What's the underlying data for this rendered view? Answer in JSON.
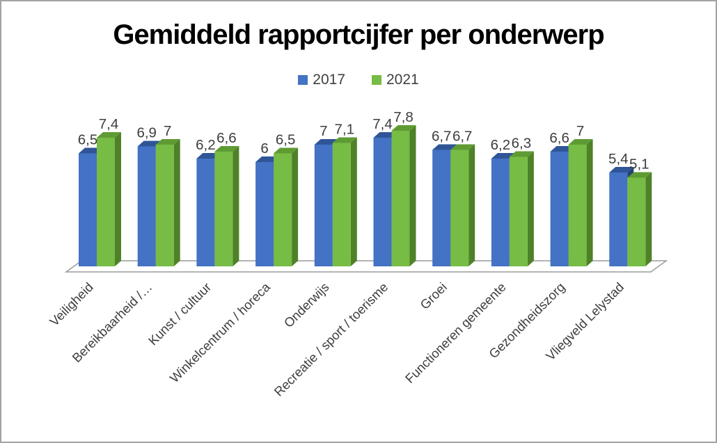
{
  "title": "Gemiddeld rapportcijfer per onderwerp",
  "legend": {
    "items": [
      {
        "label": "2017",
        "color": "#4472C4"
      },
      {
        "label": "2021",
        "color": "#77BC45"
      }
    ]
  },
  "chart_data": {
    "type": "bar",
    "style": "3d-clustered",
    "title": "Gemiddeld rapportcijfer per onderwerp",
    "legend_position": "top",
    "gridlines": false,
    "value_axis_visible": false,
    "ylim": [
      0,
      8
    ],
    "decimal_separator": ",",
    "categories": [
      "Veiligheid",
      "Bereikbaarheid /…",
      "Kunst / cultuur",
      "Winkelcentrum / horeca",
      "Onderwijs",
      "Recreatie / sport / toerisme",
      "Groei",
      "Functioneren gemeente",
      "Gezondheidszorg",
      "Vliegveld Lelystad"
    ],
    "series": [
      {
        "name": "2017",
        "color": "#4472C4",
        "top_color": "#2F5597",
        "side_color": "#24417A",
        "values": [
          6.5,
          6.9,
          6.2,
          6.0,
          7.0,
          7.4,
          6.7,
          6.2,
          6.6,
          5.4
        ],
        "display_labels": [
          "6,5",
          "6,9",
          "6,2",
          "6",
          "7",
          "7,4",
          "6,7",
          "6,2",
          "6,6",
          "5,4"
        ]
      },
      {
        "name": "2021",
        "color": "#77BC45",
        "top_color": "#5F9B33",
        "side_color": "#4E8128",
        "values": [
          7.4,
          7.0,
          6.6,
          6.5,
          7.1,
          7.8,
          6.7,
          6.3,
          7.0,
          5.1
        ],
        "display_labels": [
          "7,4",
          "7",
          "6,6",
          "6,5",
          "7,1",
          "7,8",
          "6,7",
          "6,3",
          "7",
          "5,1"
        ]
      }
    ],
    "floor_color": "#9a9a9a",
    "label_color": "#3d3d3d"
  }
}
